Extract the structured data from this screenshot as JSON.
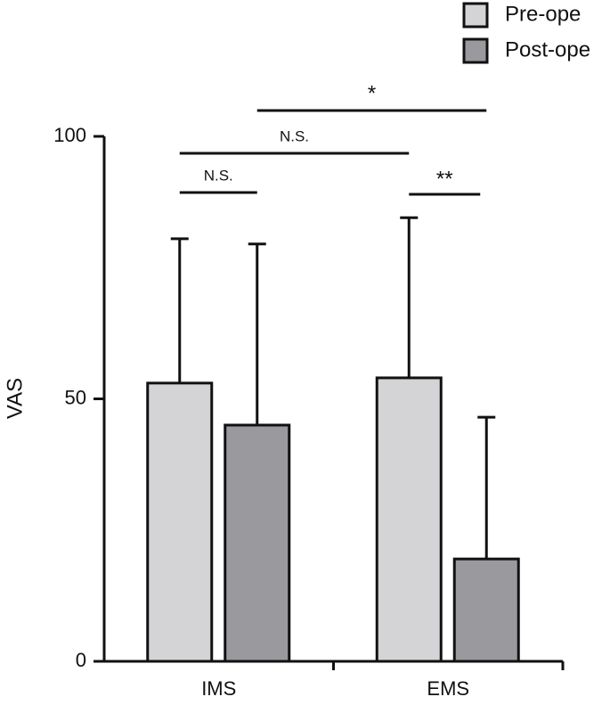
{
  "chart_data": {
    "type": "bar",
    "y_label": "VAS",
    "categories": [
      "IMS",
      "EMS"
    ],
    "series": [
      {
        "name": "Pre-ope",
        "color": "#d4d4d6",
        "values": [
          53,
          54
        ],
        "errors": [
          27.5,
          30.5
        ]
      },
      {
        "name": "Post-ope",
        "color": "#9a9a9e",
        "values": [
          45,
          19.5
        ],
        "errors": [
          34.5,
          27
        ]
      }
    ],
    "ylim": [
      0,
      100
    ],
    "yticks": [
      0,
      50,
      100
    ],
    "annotations": [
      "*",
      "N.S.",
      "N.S.",
      "**"
    ]
  }
}
